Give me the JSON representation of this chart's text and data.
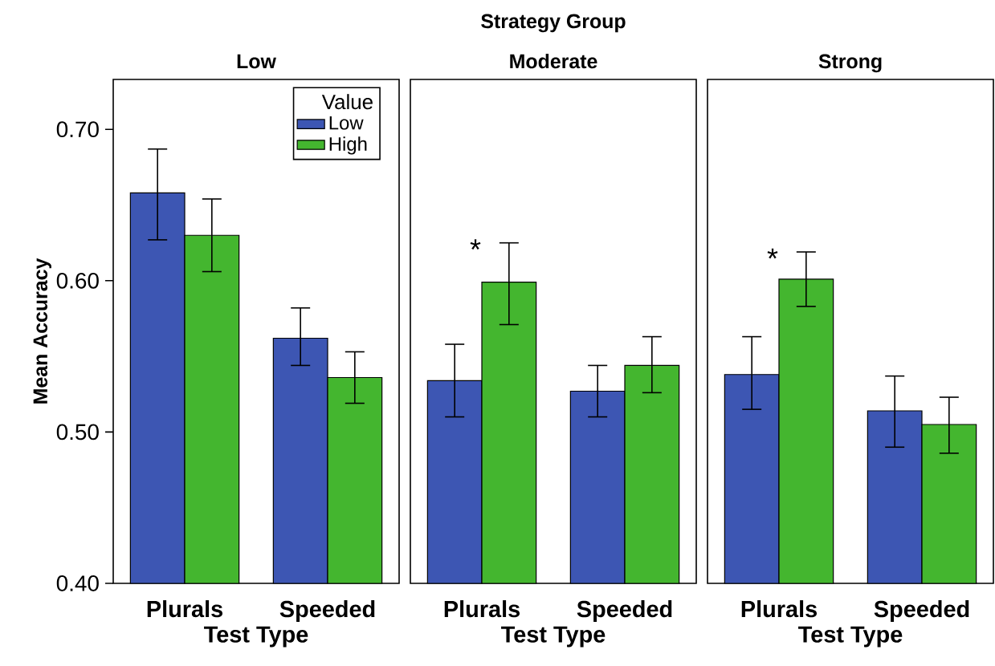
{
  "chart_data": [
    {
      "type": "bar",
      "subtitle": "Low",
      "xlabel": "Test Type",
      "ylabel": "Mean Accuracy",
      "legend_title": "Value",
      "legend": "top right",
      "categories": [
        "Plurals",
        "Speeded"
      ],
      "ylim": [
        0.4,
        0.733
      ],
      "yticks": [
        {
          "value": 0.4,
          "label": "0.40"
        },
        {
          "value": 0.5,
          "label": "0.50"
        },
        {
          "value": 0.6,
          "label": "0.60"
        },
        {
          "value": 0.7,
          "label": "0.70"
        }
      ],
      "series": [
        {
          "name": "Low",
          "color": "#3d56b3",
          "values": [
            0.658,
            0.562
          ],
          "errors": [
            [
              0.627,
              0.687
            ],
            [
              0.544,
              0.582
            ]
          ]
        },
        {
          "name": "High",
          "color": "#44b62f",
          "values": [
            0.63,
            0.536
          ],
          "errors": [
            [
              0.606,
              0.654
            ],
            [
              0.519,
              0.553
            ]
          ]
        }
      ]
    },
    {
      "type": "bar",
      "title": "Strategy Group",
      "subtitle": "Moderate",
      "xlabel": "Test Type",
      "tick_labels": "x",
      "categories": [
        "Plurals",
        "Speeded"
      ],
      "ylim": [
        0.4,
        0.733
      ],
      "annotations": [
        "*"
      ],
      "series": [
        {
          "color": "#3d56b3",
          "values": [
            0.534,
            0.527
          ],
          "errors": [
            [
              0.51,
              0.558
            ],
            [
              0.51,
              0.544
            ]
          ]
        },
        {
          "color": "#44b62f",
          "values": [
            0.599,
            0.544
          ],
          "errors": [
            [
              0.571,
              0.625
            ],
            [
              0.526,
              0.563
            ]
          ]
        }
      ]
    },
    {
      "type": "bar",
      "subtitle": "Strong",
      "xlabel": "Test Type",
      "tick_labels": "x",
      "categories": [
        "Plurals",
        "Speeded"
      ],
      "ylim": [
        0.4,
        0.733
      ],
      "annotations": [
        "*"
      ],
      "series": [
        {
          "color": "#3d56b3",
          "values": [
            0.538,
            0.514
          ],
          "errors": [
            [
              0.515,
              0.563
            ],
            [
              0.49,
              0.537
            ]
          ]
        },
        {
          "color": "#44b62f",
          "values": [
            0.601,
            0.505
          ],
          "errors": [
            [
              0.583,
              0.619
            ],
            [
              0.486,
              0.523
            ]
          ]
        }
      ]
    }
  ]
}
